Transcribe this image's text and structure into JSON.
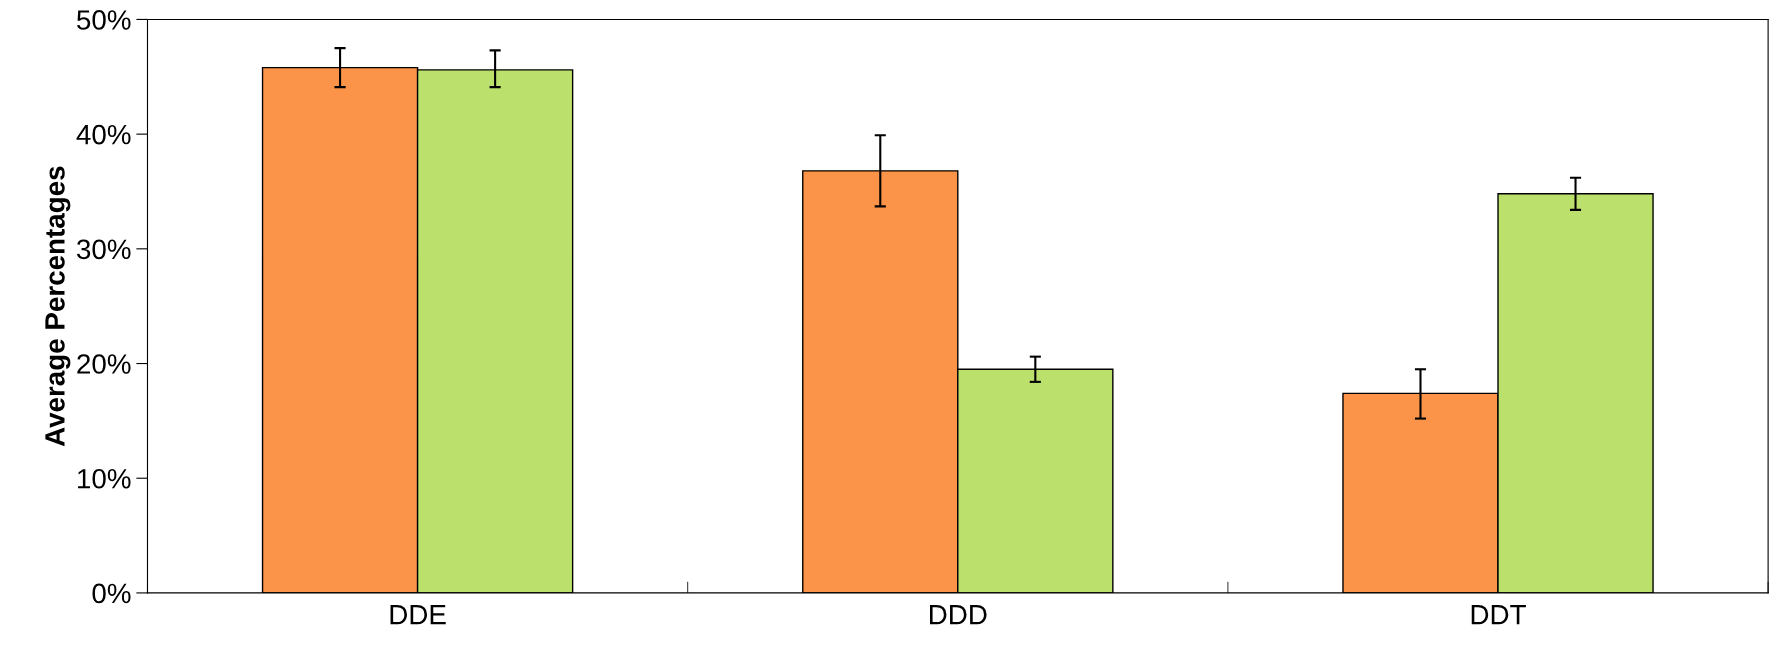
{
  "chart_data": {
    "type": "bar",
    "ylabel": "Average Percentages",
    "categories": [
      "DDE",
      "DDD",
      "DDT"
    ],
    "series": [
      {
        "color": "#fb9449",
        "values": [
          45.8,
          36.8,
          17.4
        ],
        "errors": [
          [
            44.1,
            47.5
          ],
          [
            33.7,
            39.9
          ],
          [
            15.2,
            19.5
          ]
        ]
      },
      {
        "color": "#bbe06b",
        "values": [
          45.6,
          19.5,
          34.8
        ],
        "errors": [
          [
            44.1,
            47.3
          ],
          [
            18.4,
            20.6
          ],
          [
            33.4,
            36.2
          ]
        ]
      }
    ],
    "ylim": [
      0,
      50
    ],
    "yticks": [
      {
        "value": 0,
        "label": "0%"
      },
      {
        "value": 10,
        "label": "10%"
      },
      {
        "value": 20,
        "label": "20%"
      },
      {
        "value": 30,
        "label": "30%"
      },
      {
        "value": 40,
        "label": "40%"
      },
      {
        "value": 50,
        "label": "50%"
      }
    ],
    "grid": false,
    "legend": false
  }
}
